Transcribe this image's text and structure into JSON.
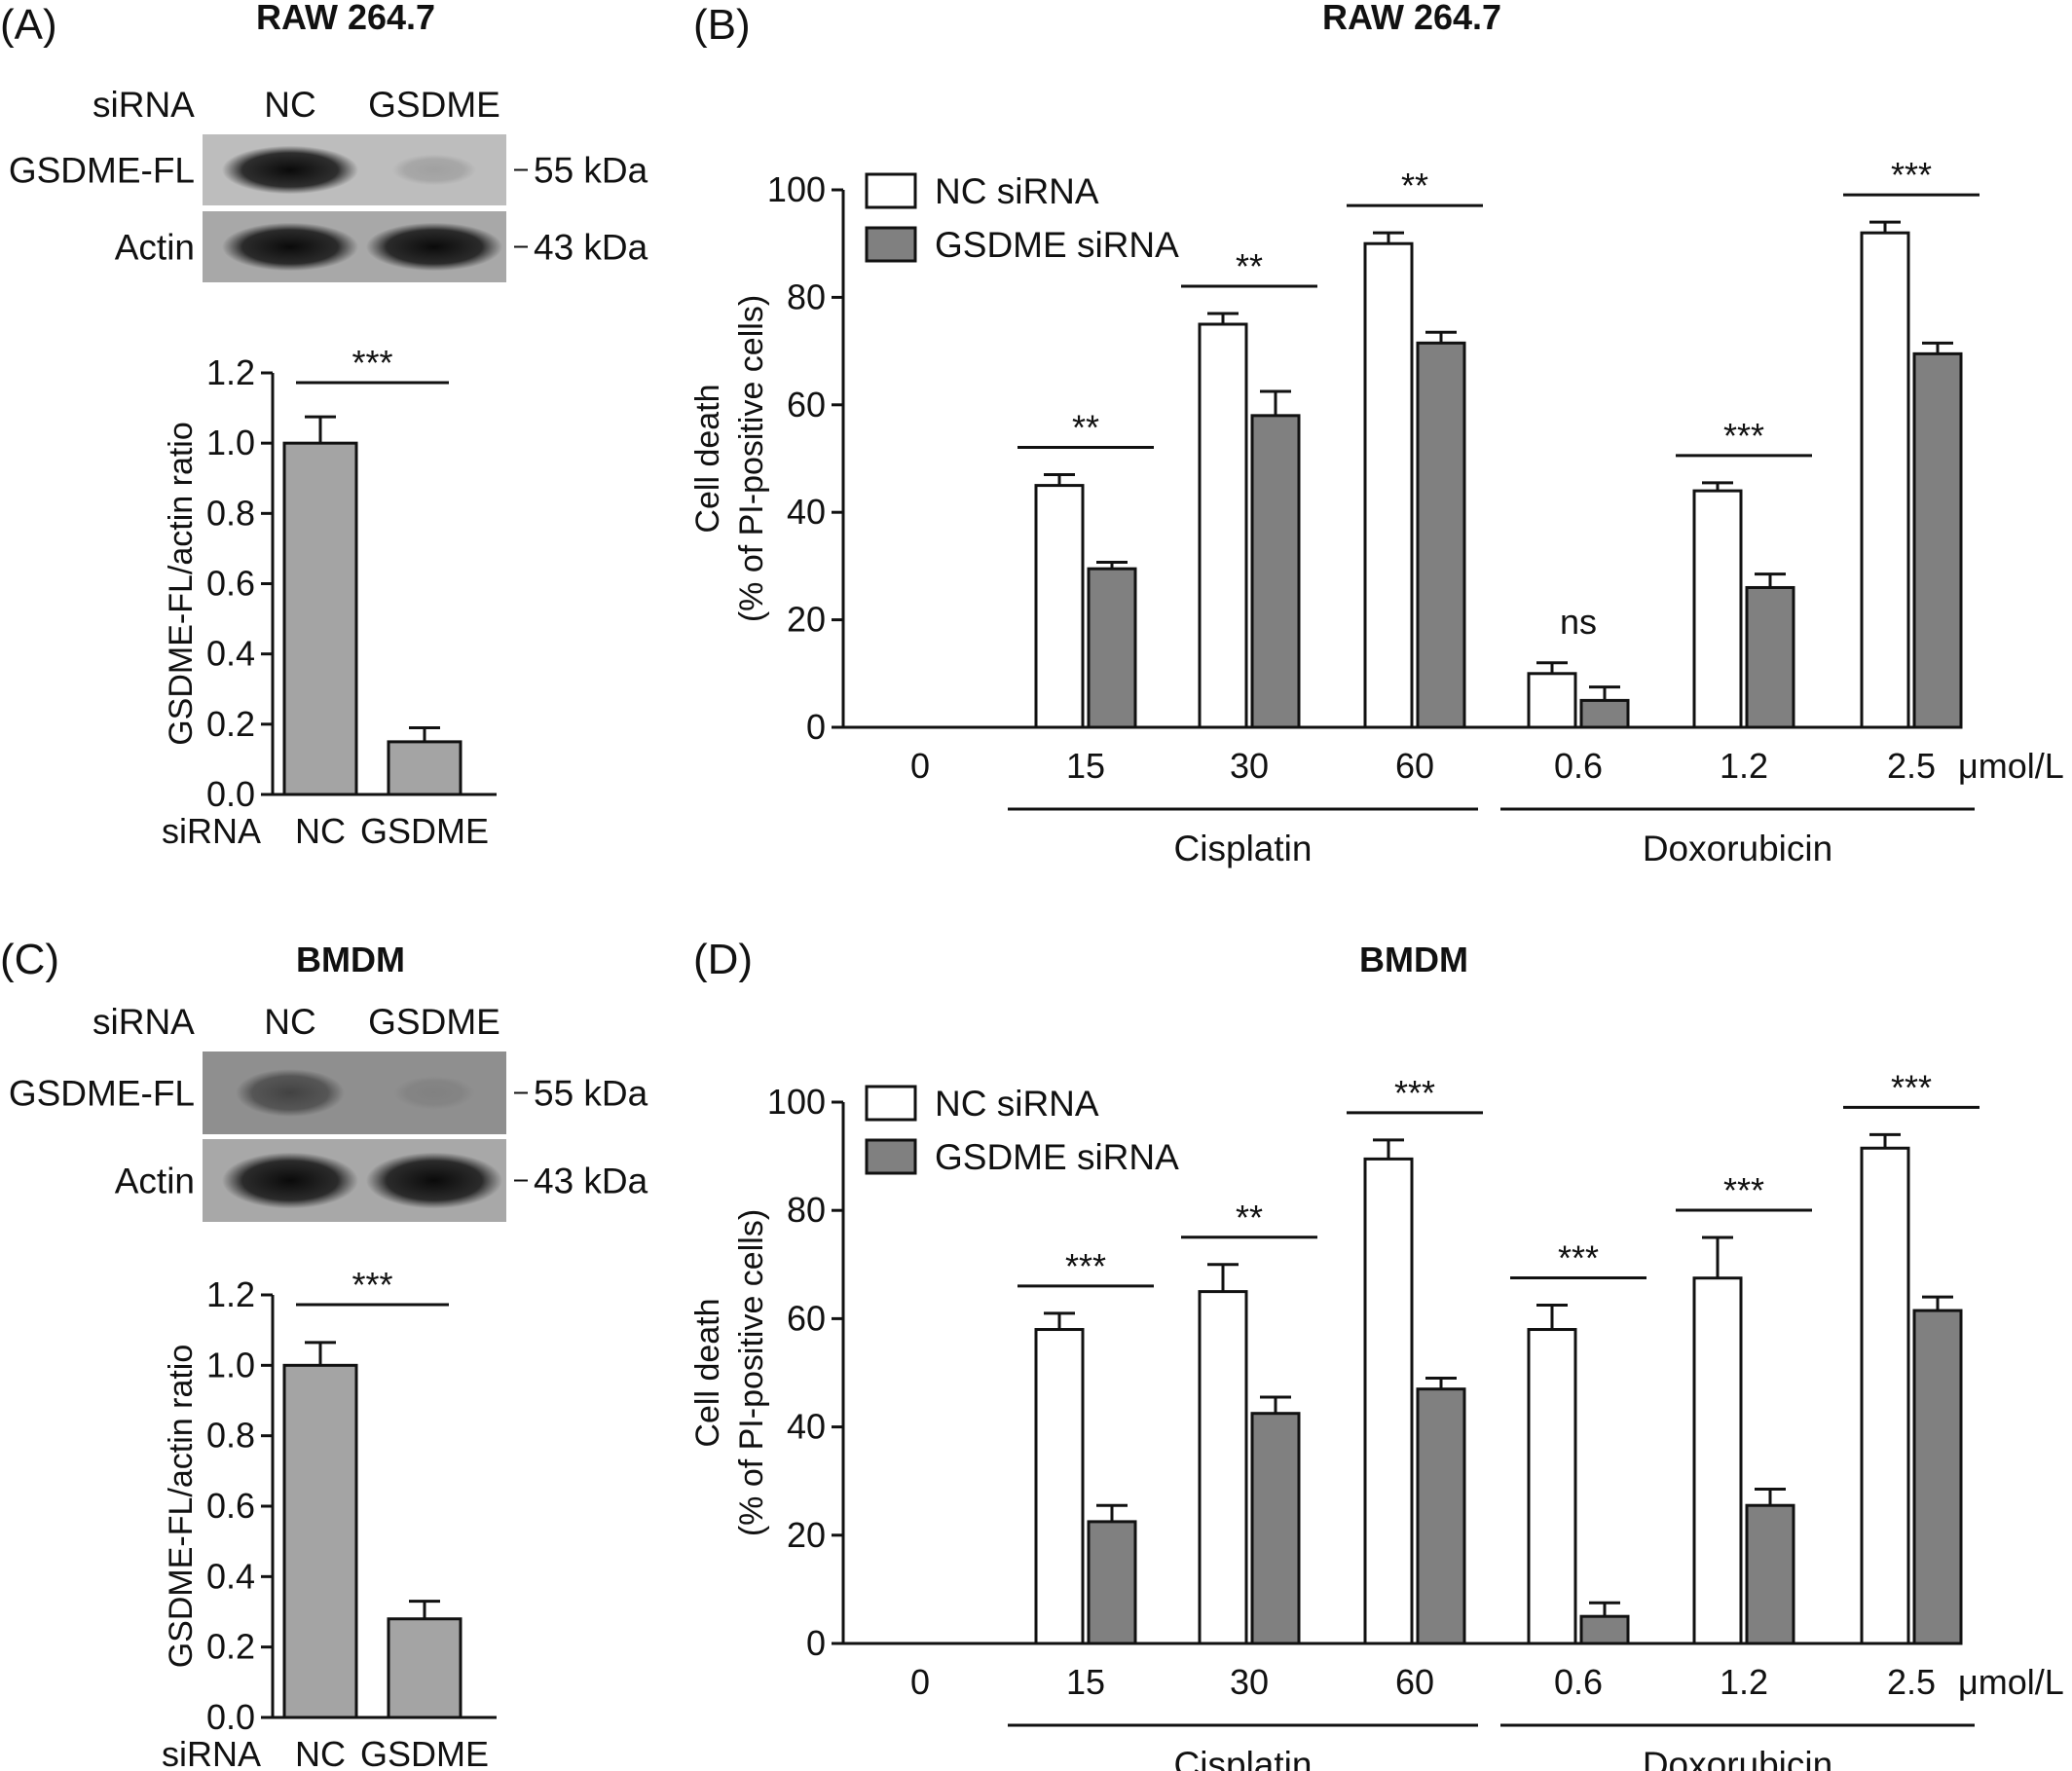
{
  "panels": {
    "A": {
      "label": "(A)",
      "title": "RAW 264.7",
      "header_row": "siRNA",
      "lanes": [
        "NC",
        "GSDME"
      ],
      "bands": [
        {
          "name": "GSDME-FL",
          "size": "55 kDa",
          "intensity": [
            1.0,
            0.15
          ]
        },
        {
          "name": "Actin",
          "size": "43 kDa",
          "intensity": [
            1.0,
            1.0
          ]
        }
      ]
    },
    "B": {
      "label": "(B)",
      "title": "RAW 264.7"
    },
    "C": {
      "label": "(C)",
      "title": "BMDM",
      "header_row": "siRNA",
      "lanes": [
        "NC",
        "GSDME"
      ],
      "bands": [
        {
          "name": "GSDME-FL",
          "size": "55 kDa",
          "intensity": [
            0.55,
            0.1
          ]
        },
        {
          "name": "Actin",
          "size": "43 kDa",
          "intensity": [
            1.0,
            1.0
          ]
        }
      ]
    },
    "D": {
      "label": "(D)",
      "title": "BMDM"
    }
  },
  "chart_data": [
    {
      "panel": "A",
      "type": "bar",
      "categories": [
        "NC",
        "GSDME"
      ],
      "category_prefix": "siRNA",
      "values": [
        1.0,
        0.15
      ],
      "errors": [
        0.075,
        0.04
      ],
      "ylabel": "GSDME-FL/actin ratio",
      "ylim": [
        0,
        1.2
      ],
      "yticks": [
        "0.0",
        "0.2",
        "0.4",
        "0.6",
        "0.8",
        "1.0",
        "1.2"
      ],
      "significance": "***",
      "bar_color": "#a4a4a4"
    },
    {
      "panel": "B",
      "type": "bar",
      "categories": [
        "0",
        "15",
        "30",
        "60",
        "0.6",
        "1.2",
        "2.5"
      ],
      "unit": "μmol/L",
      "groups": [
        {
          "label": "Cisplatin",
          "from": 1,
          "to": 3
        },
        {
          "label": "Doxorubicin",
          "from": 4,
          "to": 6
        }
      ],
      "series": [
        {
          "name": "NC siRNA",
          "color": "#ffffff",
          "values": [
            0,
            45,
            75,
            90,
            10,
            44,
            92
          ],
          "errors": [
            0,
            2,
            2,
            2,
            2,
            1.5,
            2
          ]
        },
        {
          "name": "GSDME siRNA",
          "color": "#808080",
          "values": [
            0,
            29.5,
            58,
            71.5,
            5,
            26,
            69.5
          ],
          "errors": [
            0,
            1.2,
            4.5,
            2,
            2.5,
            2.5,
            2
          ]
        }
      ],
      "significance": [
        "",
        "**",
        "**",
        "**",
        "ns",
        "***",
        "***"
      ],
      "ylabel": "Cell death",
      "ylabel2": "(% of PI-positive cells)",
      "ylim": [
        0,
        100
      ],
      "yticks": [
        "0",
        "20",
        "40",
        "60",
        "80",
        "100"
      ]
    },
    {
      "panel": "C",
      "type": "bar",
      "categories": [
        "NC",
        "GSDME"
      ],
      "category_prefix": "siRNA",
      "values": [
        1.0,
        0.28
      ],
      "errors": [
        0.065,
        0.05
      ],
      "ylabel": "GSDME-FL/actin ratio",
      "ylim": [
        0,
        1.2
      ],
      "yticks": [
        "0.0",
        "0.2",
        "0.4",
        "0.6",
        "0.8",
        "1.0",
        "1.2"
      ],
      "significance": "***",
      "bar_color": "#a4a4a4"
    },
    {
      "panel": "D",
      "type": "bar",
      "categories": [
        "0",
        "15",
        "30",
        "60",
        "0.6",
        "1.2",
        "2.5"
      ],
      "unit": "μmol/L",
      "groups": [
        {
          "label": "Cisplatin",
          "from": 1,
          "to": 3
        },
        {
          "label": "Doxorubicin",
          "from": 4,
          "to": 6
        }
      ],
      "series": [
        {
          "name": "NC siRNA",
          "color": "#ffffff",
          "values": [
            0,
            58,
            65,
            89.5,
            58,
            67.5,
            91.5
          ],
          "errors": [
            0,
            3,
            5,
            3.5,
            4.5,
            7.5,
            2.5
          ]
        },
        {
          "name": "GSDME siRNA",
          "color": "#808080",
          "values": [
            0,
            22.5,
            42.5,
            47,
            5,
            25.5,
            61.5
          ],
          "errors": [
            0,
            3,
            3,
            2,
            2.5,
            3,
            2.5
          ]
        }
      ],
      "significance": [
        "",
        "***",
        "**",
        "***",
        "***",
        "***",
        "***"
      ],
      "ylabel": "Cell death",
      "ylabel2": "(% of PI-positive cells)",
      "ylim": [
        0,
        100
      ],
      "yticks": [
        "0",
        "20",
        "40",
        "60",
        "80",
        "100"
      ]
    }
  ]
}
